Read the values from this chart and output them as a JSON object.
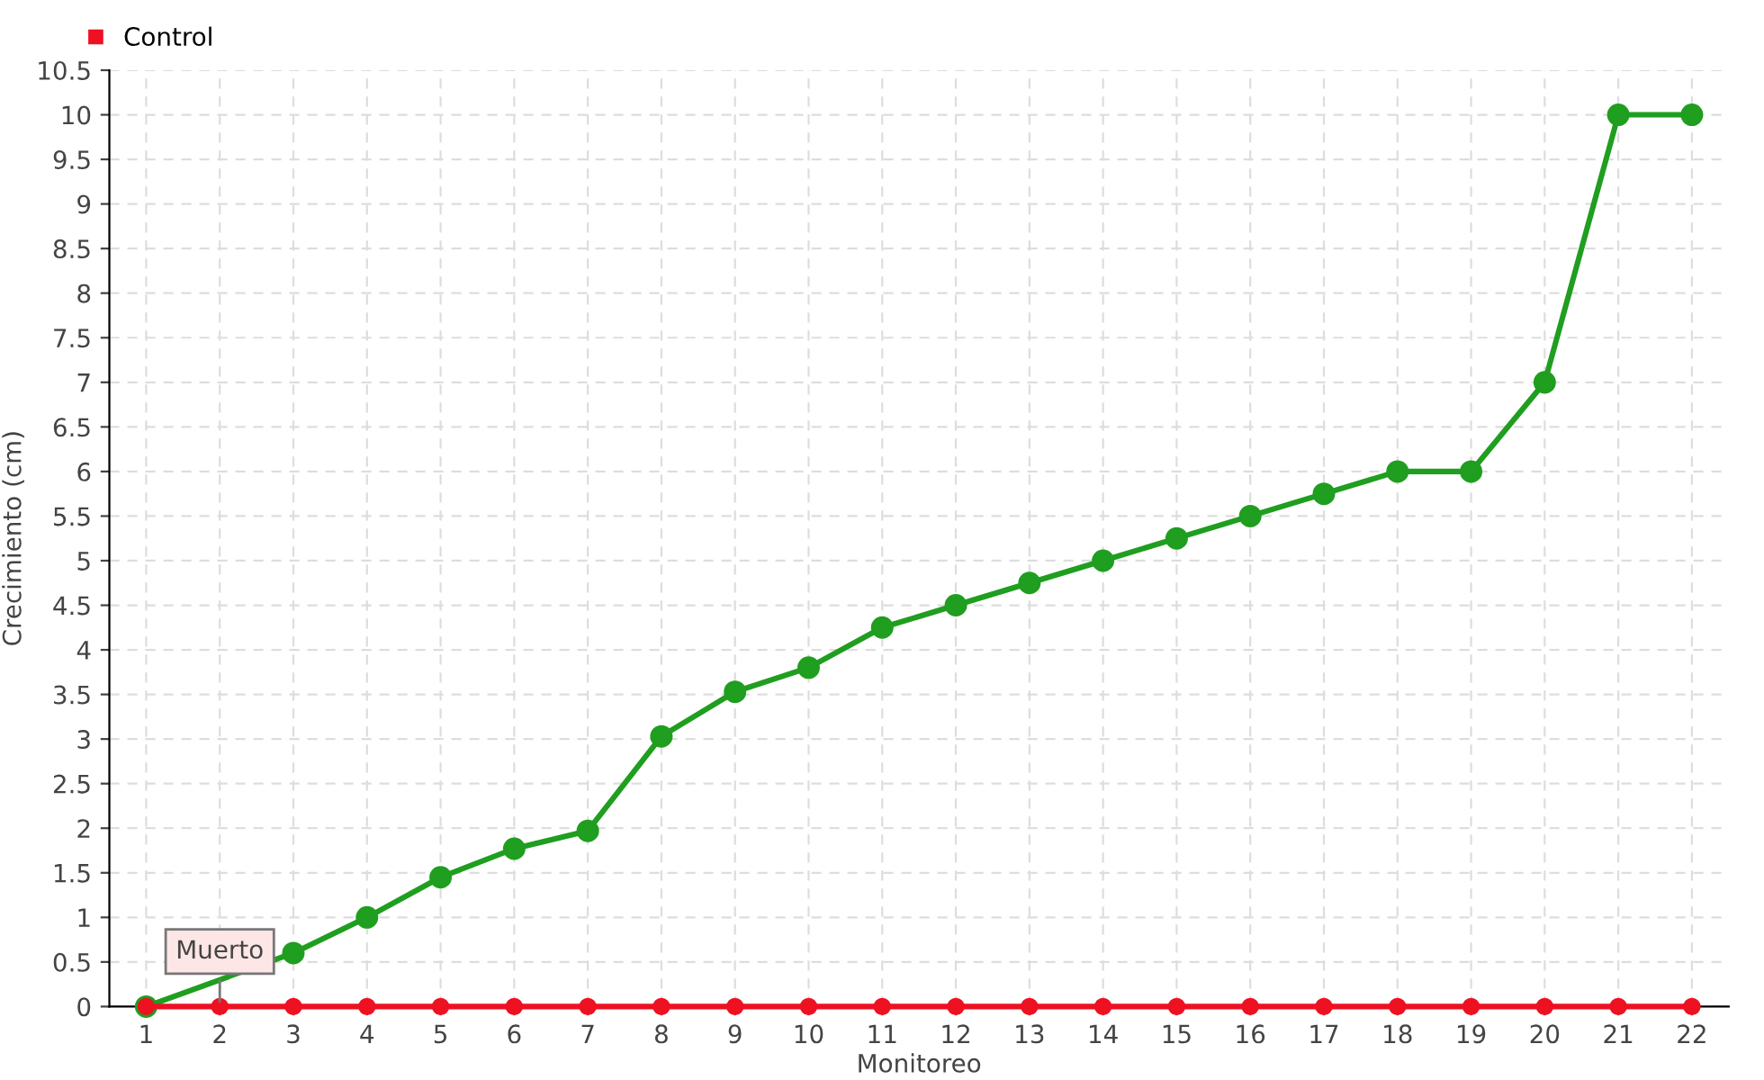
{
  "chart_data": {
    "type": "line",
    "xlabel": "Monitoreo",
    "ylabel": "Crecimiento (cm)",
    "categories": [
      "1",
      "2",
      "3",
      "4",
      "5",
      "6",
      "7",
      "8",
      "9",
      "10",
      "11",
      "12",
      "13",
      "14",
      "15",
      "16",
      "17",
      "18",
      "19",
      "20",
      "21",
      "22"
    ],
    "series": [
      {
        "color": "#1f9e1f",
        "values": [
          0,
          null,
          0.6,
          1.0,
          1.45,
          1.77,
          1.97,
          3.03,
          3.53,
          3.8,
          4.25,
          4.5,
          4.75,
          5.0,
          5.25,
          5.5,
          5.75,
          6.0,
          6.0,
          7.0,
          10.0,
          10.0
        ]
      },
      {
        "name": "Control",
        "color": "#ee1122",
        "values": [
          0,
          0,
          0,
          0,
          0,
          0,
          0,
          0,
          0,
          0,
          0,
          0,
          0,
          0,
          0,
          0,
          0,
          0,
          0,
          0,
          0,
          0
        ]
      }
    ],
    "ylim": [
      0,
      10.5
    ],
    "yticks": [
      0,
      0.5,
      1,
      1.5,
      2,
      2.5,
      3,
      3.5,
      4,
      4.5,
      5,
      5.5,
      6,
      6.5,
      7,
      7.5,
      8,
      8.5,
      9,
      9.5,
      10,
      10.5
    ],
    "annotations": [
      {
        "text": "Muerto",
        "x": "2",
        "y": 0
      }
    ],
    "grid": true,
    "legend": "top left",
    "marker": "circle",
    "line_style": "solid"
  }
}
